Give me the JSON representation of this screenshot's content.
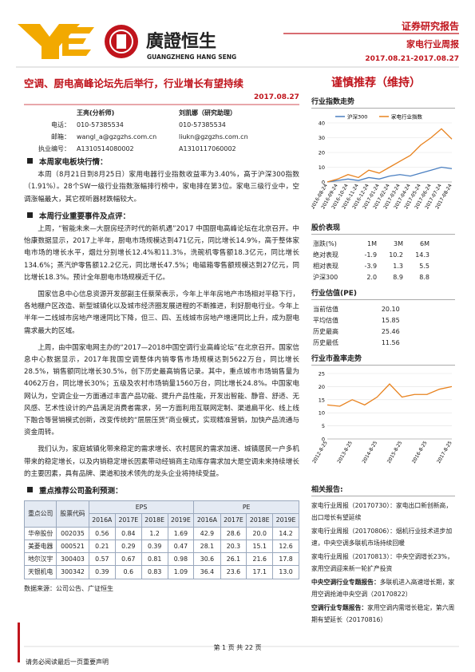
{
  "header": {
    "logo_name": "廣證恒生",
    "logo_en": "GUANGZHENG HANG SENG",
    "report_type": "证券研究报告",
    "report_name": "家电行业周报",
    "period": "2017.08.21-2017.08.27"
  },
  "title": "空调、厨电高峰论坛先后举行，行业增长有望持续",
  "rating": "谨慎推荐（维持）",
  "date": "2017.08.27",
  "analysts": {
    "labels": [
      "电话：",
      "邮箱：",
      "执业编号："
    ],
    "people": [
      {
        "name": "王亮(分析师)",
        "phone": "010-57385534",
        "email": "wangl_a@gzgzhs.com.cn",
        "license": "A1310514080002"
      },
      {
        "name": "刘凯娜（研究助理）",
        "phone": "010-57385534",
        "email": "liukn@gzgzhs.com.cn",
        "license": "A1310117060002"
      }
    ]
  },
  "sections": [
    {
      "heading": "本周家电板块行情：",
      "paragraphs": [
        "本周（8月21日到8月25日）家用电器行业指数收益率为3.40%，高于沪深300指数（1.91%）。28个SW一级行业指数涨幅排行榜中，家电排在第3位。家电三级行业中，空调涨幅最大，其它视听器材跌幅较大。"
      ]
    },
    {
      "heading": "本周行业重要事件及点评：",
      "paragraphs": [
        "上周，“智能未来—大厨房经济时代的新机遇”2017 中国厨电高峰论坛在北京召开。中怡康数据显示，2017上半年，厨电市场规模达到471亿元，同比增长14.9%，高于整体家电市场的增长水平，烟灶分别增长12.4%和11.3%，洗碗机零售额18.3亿元，同比增长134.6%；蒸汽炉零售额12.2亿元，同比增长47.5%；电磁箱零售额规模达到27亿元，同比增长18.3%。预计全年厨电市场规模近千亿。",
        "国家信息中心信息资源开发部副主任蔡荣表示，今年上半年房地产市场相对平稳下行，各地棚户区改造、新型城镇化以及城市经济圈发展进程的不断推进，利好厨电行业。今年上半年一二线城市房地产增速同比下降，但三、四、五线城市房地产增速同比上升，成为厨电需求最大的区域。",
        "上周，由中国家电网主办的“2017—2018中国空调行业高峰论坛”在北京召开。国家信息中心数据显示，2017年我国空调整体内销零售市场规模达到5622万台，同比增长28.5%，销售额同比增长30.5%，创下历史最高销售记录。其中，重点城市市场销售量为4062万台，同比增长30%；五级及农村市场销量1560万台，同比增长24.8%。中国家电网认为，空调企业一方面通过丰富产品功能、提升产品性能，开发出智能、静音、舒适、无风感、艺术性设计的产品满足消费者需求，另一方面利用互联网定制、渠道扁平化、线上线下融合等营销模式创新，改变传统的“层层压货”商业模式，实现精准营销，加快产品流通与资金周转。",
        "我们认为，家庭城镇化带来稳定的需求增长、农村居民的需求加速、城镇居民一户多机带来的稳定增长，以及内销稳定增长因素带动经销商主动库存需求加大是空调未来持续增长的主要因素，具有品牌、渠道和技术领先的龙头企业将持续受益。"
      ]
    },
    {
      "heading": "重点推荐公司盈利预测：",
      "paragraphs": []
    }
  ],
  "forecast": {
    "company": "重点公司",
    "code": "股票代码",
    "eps": "EPS",
    "pe": "PE",
    "years": [
      "2016A",
      "2017E",
      "2018E",
      "2019E"
    ],
    "rows": [
      [
        "华帝股份",
        "002035",
        "0.56",
        "0.84",
        "1.2",
        "1.69",
        "42.9",
        "28.6",
        "20.0",
        "14.2"
      ],
      [
        "美菱电器",
        "000521",
        "0.21",
        "0.29",
        "0.39",
        "0.47",
        "28.1",
        "20.3",
        "15.1",
        "12.6"
      ],
      [
        "地尔汉宇",
        "300403",
        "0.57",
        "0.67",
        "0.81",
        "0.98",
        "30.6",
        "26.1",
        "21.6",
        "17.8"
      ],
      [
        "天银机电",
        "300342",
        "0.39",
        "0.6",
        "0.83",
        "1.09",
        "36.4",
        "23.6",
        "17.1",
        "13.0"
      ]
    ],
    "source": "数据来源：公司公告、广证恒生"
  },
  "index_chart": {
    "title": "行业指数走势",
    "ylim": [
      0,
      40
    ],
    "yticks": [
      0,
      10,
      20,
      30,
      40
    ],
    "categories": [
      "2016-08-24",
      "2016-09-24",
      "2016-10-24",
      "2016-11-24",
      "2016-12-24",
      "2017-01-24",
      "2017-02-24",
      "2017-03-24",
      "2017-04-24",
      "2017-05-24",
      "2017-06-24",
      "2017-07-24",
      "2017-08-24"
    ],
    "series": [
      {
        "name": "沪深300",
        "color": "#4a7fc1",
        "values": [
          0,
          1,
          2,
          1,
          3,
          2,
          4,
          5,
          4,
          6,
          8,
          10,
          9
        ]
      },
      {
        "name": "家电行业指数",
        "color": "#e8821e",
        "values": [
          0,
          2,
          5,
          3,
          8,
          6,
          10,
          14,
          18,
          25,
          30,
          36,
          29
        ]
      }
    ]
  },
  "stock_performance": {
    "title": "股价表现",
    "header": [
      "涨跌(%)",
      "1M",
      "3M",
      "6M"
    ],
    "rows": [
      [
        "绝对表现",
        "-1.9",
        "10.2",
        "14.3"
      ],
      [
        "相对表现",
        "-3.9",
        "1.3",
        "5.5"
      ],
      [
        "沪深300",
        "2.0",
        "8.9",
        "8.8"
      ]
    ]
  },
  "valuation": {
    "title": "行业估值(PE)",
    "rows": [
      [
        "当前估值",
        "20.10"
      ],
      [
        "平均估值",
        "15.85"
      ],
      [
        "历史最高",
        "25.46"
      ],
      [
        "历史最低",
        "11.56"
      ]
    ]
  },
  "pe_chart": {
    "title": "行业市盈率走势",
    "ylim": [
      0,
      25
    ],
    "yticks": [
      0,
      5,
      10,
      15,
      20,
      25
    ],
    "categories": [
      "2012-8-25",
      null,
      "2013-8-25",
      null,
      "2014-8-25",
      null,
      "2015-8-25",
      null,
      "2016-8-25",
      null,
      "2017-8-25"
    ],
    "series": [
      {
        "color": "#e8821e",
        "values": [
          13,
          12.5,
          15,
          13,
          16,
          21,
          16,
          17,
          17,
          19,
          20
        ]
      }
    ]
  },
  "related": {
    "title": "相关报告:",
    "items": [
      {
        "lead": "家电行业周报（20170730）：",
        "text": "家电出口新创新高，出口增长有望延续"
      },
      {
        "lead": "家电行业周报（20170806）：",
        "text": "烟机行业技术进步加速，中央空调多联机市场持续回暖"
      },
      {
        "lead": "家电行业周报（20170813）：",
        "text": "中央空调增长23%，家用空调迎来新一轮扩产投资"
      },
      {
        "lead": "中央空调行业专题报告：",
        "text": "多联机进入高速增长期，家用空调抢滩中央空调（20170822）"
      },
      {
        "lead": "空调行业专题报告：",
        "text": "家用空调内需增长稳定，第六周期有望延长（20170816）"
      }
    ]
  },
  "footer": {
    "disclaimer": "请务必阅读最后一页重要声明",
    "page": "第 1 页 共 22 页"
  }
}
